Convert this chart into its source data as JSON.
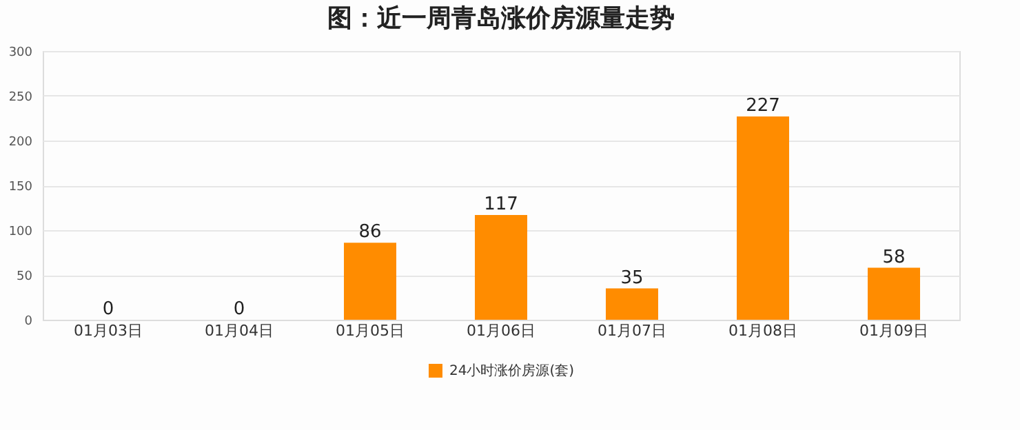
{
  "chart_data": {
    "type": "bar",
    "title": "图：近一周青岛涨价房源量走势",
    "categories": [
      "01月03日",
      "01月04日",
      "01月05日",
      "01月06日",
      "01月07日",
      "01月08日",
      "01月09日"
    ],
    "series": [
      {
        "name": "24小时涨价房源(套)",
        "color": "#ff8c00",
        "values": [
          0,
          0,
          86,
          117,
          35,
          227,
          58
        ]
      }
    ],
    "ylim": [
      0,
      300
    ],
    "yticks": [
      0,
      50,
      100,
      150,
      200,
      250,
      300
    ],
    "grid": "y",
    "legend": "bottom",
    "data_labels": true
  }
}
